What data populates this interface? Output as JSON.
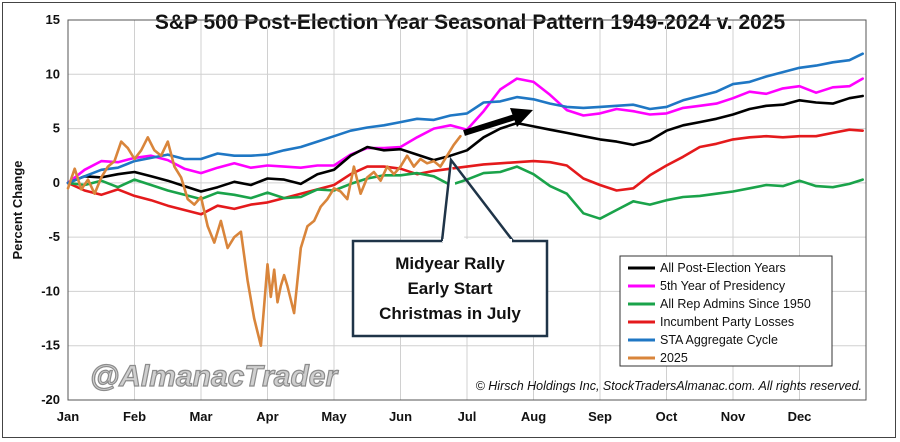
{
  "chart_data": {
    "type": "line",
    "title": "S&P 500 Post-Election Year Seasonal Pattern 1949-2024 v. 2025",
    "ylabel": "Percent Change",
    "xlabel": "",
    "ylim": [
      -20,
      15
    ],
    "yticks": [
      15,
      10,
      5,
      0,
      -5,
      -10,
      -15,
      -20
    ],
    "xlim": [
      0,
      12
    ],
    "categories": [
      "Jan",
      "Feb",
      "Mar",
      "Apr",
      "May",
      "Jun",
      "Jul",
      "Aug",
      "Sep",
      "Oct",
      "Nov",
      "Dec"
    ],
    "grid": true,
    "legend_position": "bottom-right",
    "series": [
      {
        "name": "All Post-Election Years",
        "color": "#000000",
        "x": [
          0,
          0.25,
          0.5,
          0.75,
          1,
          1.25,
          1.5,
          1.75,
          2,
          2.25,
          2.5,
          2.75,
          3,
          3.25,
          3.5,
          3.75,
          4,
          4.25,
          4.5,
          4.75,
          5,
          5.25,
          5.5,
          5.75,
          6,
          6.25,
          6.5,
          6.75,
          7,
          7.25,
          7.5,
          7.75,
          8,
          8.25,
          8.5,
          8.75,
          9,
          9.25,
          9.5,
          9.75,
          10,
          10.25,
          10.5,
          10.75,
          11,
          11.25,
          11.5,
          11.75,
          11.95
        ],
        "y": [
          0,
          0.6,
          0.5,
          0.8,
          1.0,
          0.6,
          0.2,
          -0.3,
          -0.8,
          -0.4,
          0.1,
          -0.2,
          0.4,
          0.3,
          -0.1,
          0.8,
          1.2,
          2.5,
          3.3,
          3.0,
          3.1,
          2.6,
          2.1,
          2.5,
          3.0,
          4.2,
          5.0,
          5.5,
          5.2,
          4.9,
          4.6,
          4.3,
          4.0,
          3.8,
          3.5,
          3.9,
          4.8,
          5.3,
          5.6,
          5.9,
          6.3,
          6.8,
          7.1,
          7.2,
          7.6,
          7.4,
          7.3,
          7.8,
          8.0
        ]
      },
      {
        "name": "5th Year of Presidency",
        "color": "#ff00ff",
        "x": [
          0,
          0.25,
          0.5,
          0.75,
          1,
          1.25,
          1.5,
          1.75,
          2,
          2.25,
          2.5,
          2.75,
          3,
          3.25,
          3.5,
          3.75,
          4,
          4.25,
          4.5,
          4.75,
          5,
          5.25,
          5.5,
          5.75,
          6,
          6.25,
          6.5,
          6.75,
          7,
          7.25,
          7.5,
          7.75,
          8,
          8.25,
          8.5,
          8.75,
          9,
          9.25,
          9.5,
          9.75,
          10,
          10.25,
          10.5,
          10.75,
          11,
          11.25,
          11.5,
          11.75,
          11.95
        ],
        "y": [
          0,
          1.2,
          2.0,
          1.9,
          2.3,
          2.5,
          2.1,
          1.3,
          0.9,
          1.4,
          1.8,
          1.4,
          1.6,
          1.5,
          1.4,
          1.6,
          1.6,
          2.6,
          3.2,
          3.2,
          3.3,
          4.2,
          5.0,
          5.3,
          4.9,
          6.6,
          8.6,
          9.6,
          9.3,
          8.1,
          6.7,
          6.2,
          6.4,
          6.8,
          6.6,
          6.3,
          6.4,
          6.9,
          7.1,
          7.3,
          7.8,
          8.4,
          8.2,
          8.7,
          8.9,
          8.3,
          8.8,
          8.9,
          9.6
        ]
      },
      {
        "name": "All Rep Admins Since 1950",
        "color": "#1aa34a",
        "x": [
          0,
          0.25,
          0.5,
          0.75,
          1,
          1.25,
          1.5,
          1.75,
          2,
          2.25,
          2.5,
          2.75,
          3,
          3.25,
          3.5,
          3.75,
          4,
          4.25,
          4.5,
          4.75,
          5,
          5.25,
          5.5,
          5.75,
          6,
          6.25,
          6.5,
          6.75,
          7,
          7.25,
          7.5,
          7.75,
          8,
          8.25,
          8.5,
          8.75,
          9,
          9.25,
          9.5,
          9.75,
          10,
          10.25,
          10.5,
          10.75,
          11,
          11.25,
          11.5,
          11.75,
          11.95
        ],
        "y": [
          0,
          -0.2,
          0.2,
          -0.4,
          0.3,
          -0.2,
          -0.7,
          -1.1,
          -1.5,
          -0.9,
          -1.1,
          -1.4,
          -0.9,
          -1.4,
          -1.3,
          -0.6,
          -0.7,
          -0.1,
          0.4,
          0.7,
          0.7,
          0.9,
          0.6,
          -0.2,
          0.3,
          0.9,
          1.0,
          1.5,
          0.8,
          -0.3,
          -1.0,
          -2.8,
          -3.3,
          -2.5,
          -1.7,
          -2.0,
          -1.6,
          -1.3,
          -1.2,
          -1.0,
          -0.8,
          -0.5,
          -0.2,
          -0.3,
          0.2,
          -0.3,
          -0.4,
          -0.1,
          0.3
        ]
      },
      {
        "name": "Incumbent Party Losses",
        "color": "#e41a1c",
        "x": [
          0,
          0.25,
          0.5,
          0.75,
          1,
          1.25,
          1.5,
          1.75,
          2,
          2.25,
          2.5,
          2.75,
          3,
          3.25,
          3.5,
          3.75,
          4,
          4.25,
          4.5,
          4.75,
          5,
          5.25,
          5.5,
          5.75,
          6,
          6.25,
          6.5,
          6.75,
          7,
          7.25,
          7.5,
          7.75,
          8,
          8.25,
          8.5,
          8.75,
          9,
          9.25,
          9.5,
          9.75,
          10,
          10.25,
          10.5,
          10.75,
          11,
          11.25,
          11.5,
          11.75,
          11.95
        ],
        "y": [
          0,
          -0.7,
          -1.1,
          -0.6,
          -1.2,
          -1.6,
          -2.1,
          -2.5,
          -2.9,
          -2.1,
          -2.4,
          -2.0,
          -1.8,
          -1.4,
          -1.0,
          -0.6,
          -0.2,
          0.8,
          1.5,
          1.5,
          1.3,
          0.8,
          1.1,
          1.3,
          1.5,
          1.7,
          1.8,
          1.9,
          2.0,
          1.9,
          1.6,
          0.4,
          -0.2,
          -0.7,
          -0.5,
          0.7,
          1.6,
          2.4,
          3.3,
          3.6,
          4.0,
          4.2,
          4.3,
          4.2,
          4.3,
          4.3,
          4.6,
          4.9,
          4.8
        ]
      },
      {
        "name": "STA Aggregate Cycle",
        "color": "#1f77c4",
        "x": [
          0,
          0.25,
          0.5,
          0.75,
          1,
          1.25,
          1.5,
          1.75,
          2,
          2.25,
          2.5,
          2.75,
          3,
          3.25,
          3.5,
          3.75,
          4,
          4.25,
          4.5,
          4.75,
          5,
          5.25,
          5.5,
          5.75,
          6,
          6.25,
          6.5,
          6.75,
          7,
          7.25,
          7.5,
          7.75,
          8,
          8.25,
          8.5,
          8.75,
          9,
          9.25,
          9.5,
          9.75,
          10,
          10.25,
          10.5,
          10.75,
          11,
          11.25,
          11.5,
          11.75,
          11.95
        ],
        "y": [
          0,
          0.6,
          1.2,
          1.4,
          2.0,
          2.3,
          2.6,
          2.2,
          2.2,
          2.7,
          2.5,
          2.5,
          2.6,
          3.0,
          3.3,
          3.8,
          4.3,
          4.8,
          5.1,
          5.3,
          5.6,
          5.9,
          5.8,
          6.2,
          6.4,
          7.4,
          7.5,
          7.9,
          7.7,
          7.3,
          7.0,
          6.9,
          7.0,
          7.1,
          7.2,
          6.8,
          7.0,
          7.6,
          8.0,
          8.4,
          9.1,
          9.3,
          9.8,
          10.2,
          10.6,
          10.8,
          11.1,
          11.3,
          11.9
        ]
      },
      {
        "name": "2025",
        "color": "#d9853b",
        "x": [
          0,
          0.1,
          0.2,
          0.3,
          0.4,
          0.5,
          0.6,
          0.7,
          0.8,
          0.9,
          1,
          1.1,
          1.2,
          1.3,
          1.4,
          1.5,
          1.6,
          1.7,
          1.8,
          1.9,
          2,
          2.1,
          2.2,
          2.3,
          2.4,
          2.5,
          2.6,
          2.7,
          2.8,
          2.9,
          3,
          3.05,
          3.1,
          3.15,
          3.2,
          3.25,
          3.3,
          3.4,
          3.5,
          3.6,
          3.7,
          3.8,
          3.9,
          4,
          4.1,
          4.2,
          4.3,
          4.4,
          4.5,
          4.6,
          4.7,
          4.8,
          4.9,
          5,
          5.1,
          5.2,
          5.3,
          5.4,
          5.5,
          5.6,
          5.7,
          5.8,
          5.9
        ],
        "y": [
          -0.5,
          1.3,
          -0.6,
          0.3,
          -1.0,
          0.5,
          1.5,
          2.0,
          3.8,
          3.2,
          2.2,
          3.0,
          4.2,
          3.0,
          2.5,
          3.8,
          1.5,
          0.5,
          -1.5,
          -2.0,
          -1.3,
          -4.0,
          -5.5,
          -3.5,
          -6.0,
          -5.0,
          -4.5,
          -9.0,
          -12.5,
          -15.0,
          -7.5,
          -10.5,
          -8.0,
          -11.0,
          -9.5,
          -8.5,
          -9.5,
          -12.0,
          -6.0,
          -4.0,
          -3.5,
          -2.2,
          -1.5,
          -0.5,
          -0.8,
          -1.5,
          1.5,
          -1.0,
          0.5,
          1.0,
          0.2,
          1.5,
          0.8,
          1.5,
          2.5,
          1.5,
          2.2,
          1.8,
          2.0,
          1.5,
          2.5,
          3.5,
          4.3
        ]
      }
    ],
    "annotations": [
      {
        "text_lines": [
          "Midyear Rally",
          "Early Start",
          "Christmas in July"
        ]
      },
      {
        "text": "© Hirsch Holdings Inc, StockTradersAlmanac.com. All rights reserved."
      }
    ]
  },
  "watermark": "@AlmanacTrader",
  "colors": {
    "gridline": "#d0d0d0",
    "axis": "#555555",
    "callout_border": "#1f3448"
  }
}
